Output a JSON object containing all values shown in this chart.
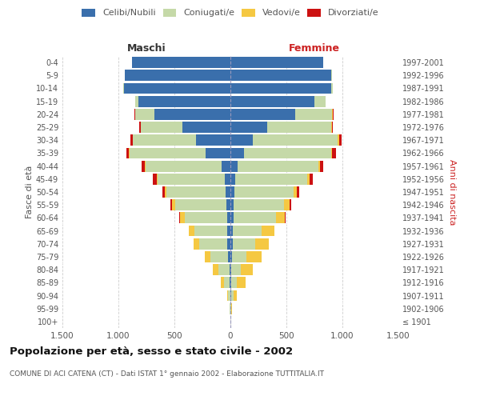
{
  "age_groups": [
    "100+",
    "95-99",
    "90-94",
    "85-89",
    "80-84",
    "75-79",
    "70-74",
    "65-69",
    "60-64",
    "55-59",
    "50-54",
    "45-49",
    "40-44",
    "35-39",
    "30-34",
    "25-29",
    "20-24",
    "15-19",
    "10-14",
    "5-9",
    "0-4"
  ],
  "birth_years": [
    "≤ 1901",
    "1902-1906",
    "1907-1911",
    "1912-1916",
    "1917-1921",
    "1922-1926",
    "1927-1931",
    "1932-1936",
    "1937-1941",
    "1942-1946",
    "1947-1951",
    "1952-1956",
    "1957-1961",
    "1962-1966",
    "1967-1971",
    "1972-1976",
    "1977-1981",
    "1982-1986",
    "1987-1991",
    "1992-1996",
    "1997-2001"
  ],
  "males": {
    "celibi": [
      0,
      0,
      0,
      5,
      10,
      20,
      30,
      30,
      30,
      35,
      40,
      50,
      80,
      220,
      310,
      430,
      680,
      820,
      950,
      940,
      880
    ],
    "coniugati": [
      0,
      5,
      20,
      50,
      100,
      160,
      250,
      290,
      380,
      460,
      530,
      600,
      680,
      680,
      560,
      370,
      170,
      30,
      5,
      2,
      1
    ],
    "vedovi": [
      0,
      5,
      10,
      30,
      50,
      50,
      50,
      50,
      40,
      25,
      15,
      10,
      5,
      5,
      3,
      2,
      2,
      0,
      0,
      0,
      0
    ],
    "divorziati": [
      0,
      0,
      0,
      0,
      0,
      0,
      0,
      5,
      10,
      15,
      20,
      30,
      30,
      25,
      20,
      10,
      5,
      0,
      0,
      0,
      0
    ]
  },
  "females": {
    "nubili": [
      0,
      0,
      5,
      5,
      10,
      15,
      20,
      20,
      25,
      30,
      35,
      45,
      65,
      120,
      200,
      330,
      580,
      750,
      900,
      900,
      830
    ],
    "coniugate": [
      0,
      5,
      20,
      50,
      80,
      130,
      200,
      260,
      380,
      450,
      530,
      640,
      720,
      780,
      760,
      570,
      330,
      100,
      15,
      5,
      2
    ],
    "vedove": [
      0,
      10,
      30,
      80,
      110,
      130,
      120,
      110,
      80,
      50,
      30,
      20,
      15,
      10,
      8,
      5,
      3,
      2,
      0,
      0,
      0
    ],
    "divorziate": [
      0,
      0,
      0,
      0,
      0,
      0,
      0,
      5,
      10,
      15,
      20,
      30,
      30,
      30,
      25,
      10,
      5,
      0,
      0,
      0,
      0
    ]
  },
  "colors": {
    "celibi_nubili": "#3a6fac",
    "coniugati": "#c5d9a8",
    "vedovi": "#f5c842",
    "divorziati": "#cc1111"
  },
  "xlim": 1500,
  "title": "Popolazione per età, sesso e stato civile - 2002",
  "subtitle": "COMUNE DI ACI CATENA (CT) - Dati ISTAT 1° gennaio 2002 - Elaborazione TUTTITALIA.IT",
  "xlabel_left": "Maschi",
  "xlabel_right": "Femmine",
  "ylabel_left": "Fasce di età",
  "ylabel_right": "Anni di nascita",
  "background_color": "#ffffff",
  "grid_color": "#cccccc"
}
